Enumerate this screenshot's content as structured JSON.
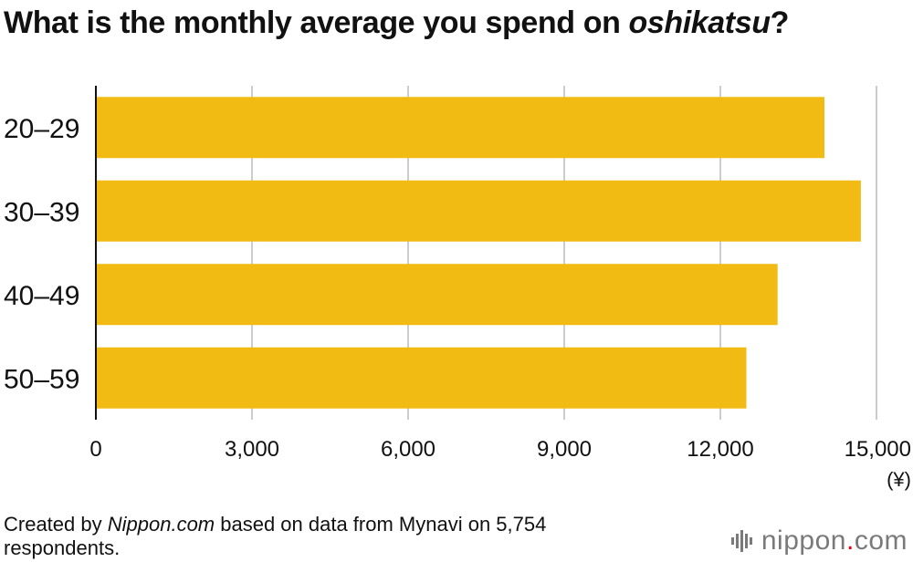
{
  "title": {
    "prefix": "What is the monthly average you spend on ",
    "emphasis": "oshikatsu",
    "suffix": "?"
  },
  "footer": {
    "created_by": "Created by ",
    "source_name": "Nippon.com",
    "rest": " based on data from Mynavi on 5,754 respondents."
  },
  "brand": {
    "prefix": "nippon",
    "dot": ".",
    "suffix": "com"
  },
  "colors": {
    "bar": "#f2bb13",
    "grid": "#cccccc",
    "axis": "#111111"
  },
  "chart_data": {
    "type": "bar",
    "orientation": "horizontal",
    "categories": [
      "20–29",
      "30–39",
      "40–49",
      "50–59"
    ],
    "values": [
      14000,
      14700,
      13100,
      12500
    ],
    "xlim": [
      0,
      15000
    ],
    "xticks": [
      0,
      3000,
      6000,
      9000,
      12000,
      15000
    ],
    "xtick_labels": [
      "0",
      "3,000",
      "6,000",
      "9,000",
      "12,000",
      "15,000"
    ],
    "unit_label": "(¥)",
    "grid": true
  }
}
